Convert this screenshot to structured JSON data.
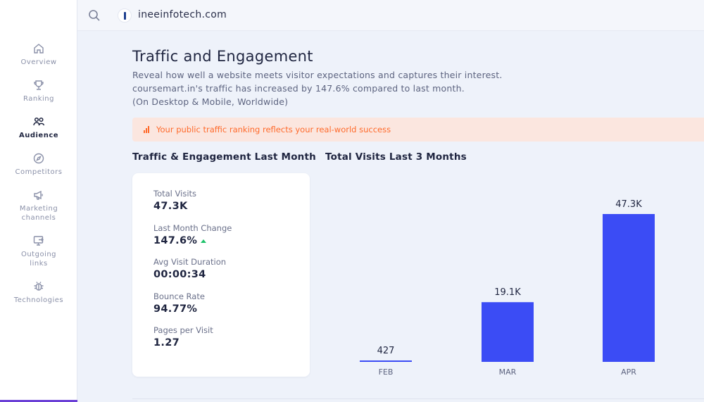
{
  "sidebar": {
    "items": [
      {
        "label": "Overview",
        "icon": "home-icon"
      },
      {
        "label": "Ranking",
        "icon": "trophy-icon"
      },
      {
        "label": "Audience",
        "icon": "users-icon",
        "active": true
      },
      {
        "label": "Competitors",
        "icon": "compass-icon"
      },
      {
        "label": "Marketing\nchannels",
        "icon": "megaphone-icon"
      },
      {
        "label": "Outgoing\nlinks",
        "icon": "external-link-icon"
      },
      {
        "label": "Technologies",
        "icon": "bug-icon"
      }
    ],
    "accent_color": "#6a3fd6"
  },
  "topbar": {
    "site_name": "ineeinfotech.com"
  },
  "main": {
    "title": "Traffic and Engagement",
    "description_lines": [
      "Reveal how well a website meets visitor expectations and captures their interest.",
      "coursemart.in's traffic has increased by 147.6% compared to last month.",
      "(On Desktop & Mobile, Worldwide)"
    ],
    "alert_text": "Your public traffic ranking reflects your real-world success",
    "alert_color": "#ff6a2b",
    "left_section_title": "Traffic & Engagement Last Month",
    "right_section_title": "Total Visits Last 3 Months",
    "stats": [
      {
        "label": "Total Visits",
        "value": "47.3K"
      },
      {
        "label": "Last Month Change",
        "value": "147.6%",
        "trend": "up"
      },
      {
        "label": "Avg Visit Duration",
        "value": "00:00:34"
      },
      {
        "label": "Bounce Rate",
        "value": "94.77%"
      },
      {
        "label": "Pages per Visit",
        "value": "1.27"
      }
    ]
  },
  "chart_data": {
    "type": "bar",
    "categories": [
      "FEB",
      "MAR",
      "APR"
    ],
    "values": [
      427,
      19100,
      47300
    ],
    "data_labels": [
      "427",
      "19.1K",
      "47.3K"
    ],
    "title": "Total Visits Last 3 Months",
    "bar_color": "#3b4cf5",
    "trend_up_color": "#1ec26a"
  }
}
